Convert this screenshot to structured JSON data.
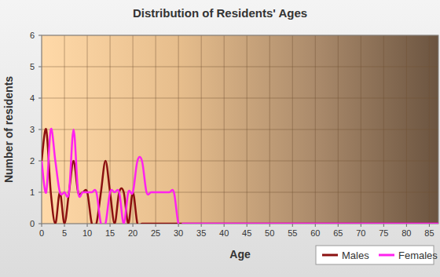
{
  "chart_data": {
    "type": "line",
    "title": "Distribution of Residents' Ages",
    "x_label": "Age",
    "y_label": "Number of residents",
    "x": [
      0,
      1,
      2,
      3,
      4,
      5,
      6,
      7,
      8,
      9,
      10,
      11,
      12,
      13,
      14,
      15,
      16,
      17,
      18,
      19,
      20,
      21,
      22,
      23,
      24,
      25,
      26,
      27,
      28,
      29,
      30,
      31,
      32,
      33,
      34,
      35,
      36,
      37,
      38,
      39,
      40,
      41,
      42,
      43,
      44,
      45,
      46,
      47,
      48,
      49,
      50,
      51,
      52,
      53,
      54,
      55,
      56,
      57,
      58,
      59,
      60,
      61,
      62,
      63,
      64,
      65,
      66,
      67,
      68,
      69,
      70,
      71,
      72,
      73,
      74,
      75,
      76,
      77,
      78,
      79,
      80,
      81,
      82,
      83,
      84,
      85,
      86,
      87
    ],
    "series": [
      {
        "name": "Males",
        "color": "#8b1010",
        "values": [
          2,
          3,
          1,
          0,
          1,
          0,
          1,
          2,
          1,
          1,
          1,
          0,
          0,
          1,
          2,
          1,
          0,
          1,
          1,
          0,
          1,
          0,
          0,
          0,
          0,
          0,
          0,
          0,
          0,
          0,
          0,
          0,
          0,
          0,
          0,
          0,
          0,
          0,
          0,
          0,
          0,
          0,
          0,
          0,
          0,
          0,
          0,
          0,
          0,
          0,
          0,
          0,
          0,
          0,
          0,
          0,
          0,
          0,
          0,
          0,
          0,
          0,
          0,
          0,
          0,
          0,
          0,
          0,
          0,
          0,
          0,
          0,
          0,
          0,
          0,
          0,
          0,
          0,
          0,
          0,
          0,
          0,
          0,
          0,
          0,
          0,
          0,
          0
        ]
      },
      {
        "name": "Females",
        "color": "#ff22ee",
        "values": [
          2,
          1,
          3,
          2,
          1,
          1,
          1,
          3,
          1,
          1,
          1,
          1,
          1,
          0,
          0,
          1,
          1,
          1,
          0,
          1,
          1,
          2,
          2,
          1,
          1,
          1,
          1,
          1,
          1,
          1,
          0,
          0,
          0,
          0,
          0,
          0,
          0,
          0,
          0,
          0,
          0,
          0,
          0,
          0,
          0,
          0,
          0,
          0,
          0,
          0,
          0,
          0,
          0,
          0,
          0,
          0,
          0,
          0,
          0,
          0,
          0,
          0,
          0,
          0,
          0,
          0,
          0,
          0,
          0,
          0,
          0,
          0,
          0,
          0,
          0,
          0,
          0,
          0,
          0,
          0,
          0,
          0,
          0,
          0,
          0,
          0,
          0,
          0
        ]
      }
    ],
    "xlim": [
      0,
      87
    ],
    "xticks": [
      0,
      5,
      10,
      15,
      20,
      25,
      30,
      35,
      40,
      45,
      50,
      55,
      60,
      65,
      70,
      75,
      80,
      85
    ],
    "ylim": [
      0,
      6
    ],
    "yticks": [
      0,
      1,
      2,
      3,
      4,
      5,
      6
    ],
    "grid": true,
    "legend": "bottom-right"
  }
}
